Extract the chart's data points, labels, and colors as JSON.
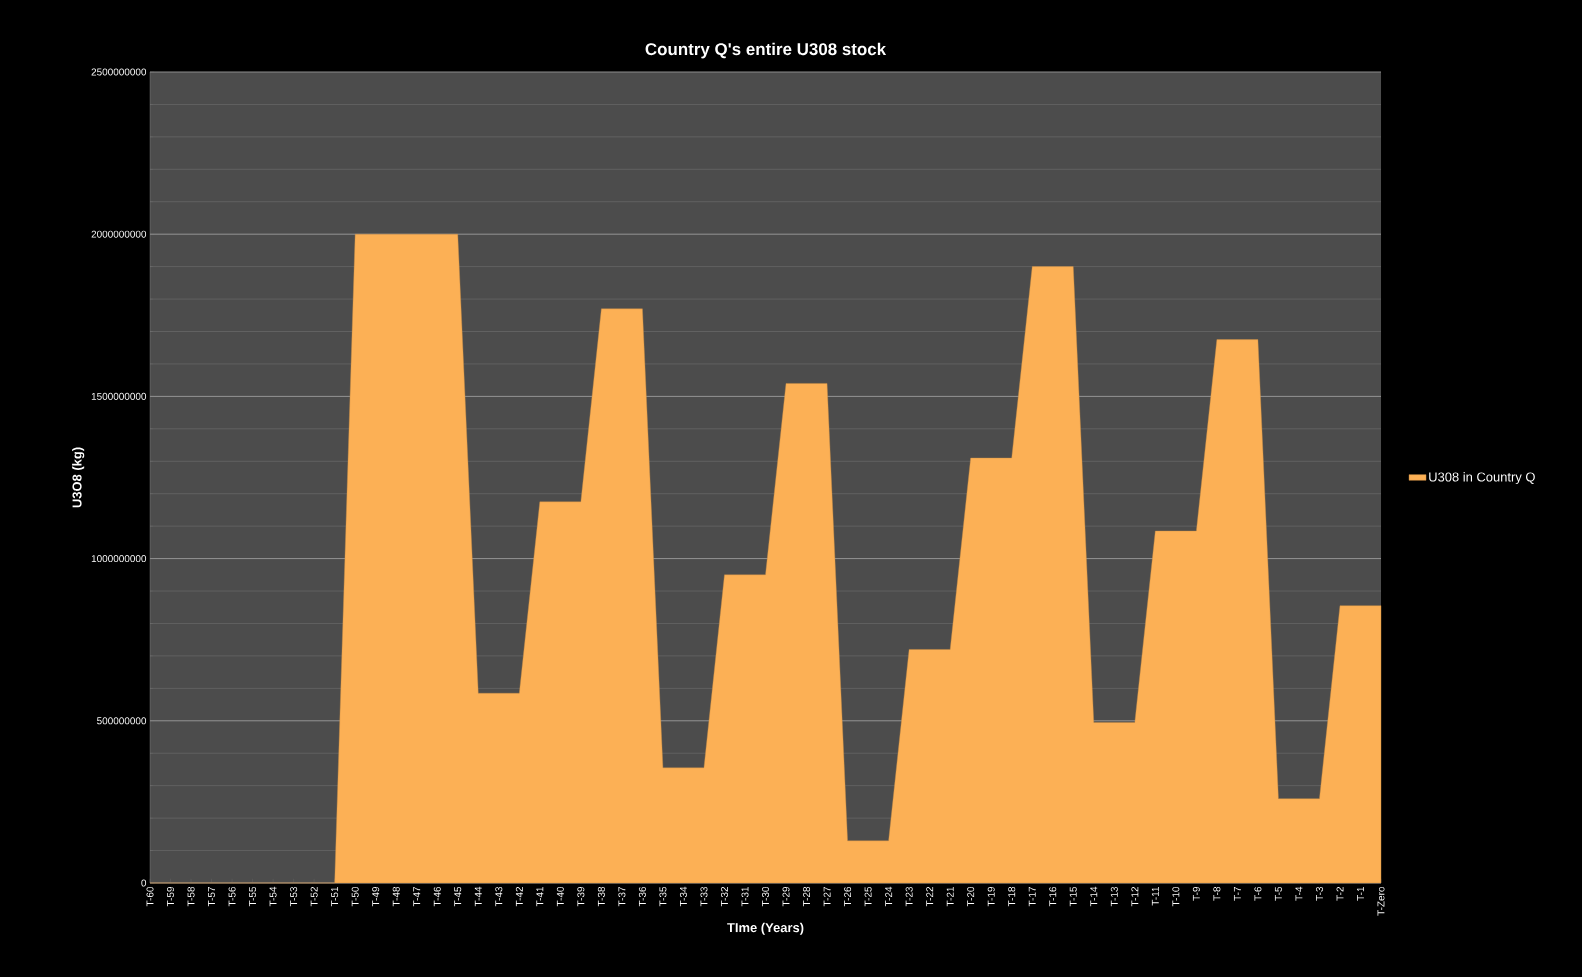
{
  "chart_data": {
    "type": "area",
    "title": "Country Q's entire U308 stock",
    "xlabel": "TIme (Years)",
    "ylabel": "U3O8  (kg)",
    "categories": [
      "T-60",
      "T-59",
      "T-58",
      "T-57",
      "T-56",
      "T-55",
      "T-54",
      "T-53",
      "T-52",
      "T-51",
      "T-50",
      "T-49",
      "T-48",
      "T-47",
      "T-46",
      "T-45",
      "T-44",
      "T-43",
      "T-42",
      "T-41",
      "T-40",
      "T-39",
      "T-38",
      "T-37",
      "T-36",
      "T-35",
      "T-34",
      "T-33",
      "T-32",
      "T-31",
      "T-30",
      "T-29",
      "T-28",
      "T-27",
      "T-26",
      "T-25",
      "T-24",
      "T-23",
      "T-22",
      "T-21",
      "T-20",
      "T-19",
      "T-18",
      "T-17",
      "T-16",
      "T-15",
      "T-14",
      "T-13",
      "T-12",
      "T-11",
      "T-10",
      "T-9",
      "T-8",
      "T-7",
      "T-6",
      "T-5",
      "T-4",
      "T-3",
      "T-2",
      "T-1",
      "T-Zero"
    ],
    "series": [
      {
        "name": "U308 in Country Q",
        "color": "#fcb055",
        "values": [
          0,
          0,
          0,
          0,
          0,
          0,
          0,
          0,
          0,
          0,
          2000000000,
          2000000000,
          2000000000,
          2000000000,
          2000000000,
          2000000000,
          585000000,
          585000000,
          585000000,
          1175000000,
          1175000000,
          1175000000,
          1770000000,
          1770000000,
          1770000000,
          355000000,
          355000000,
          355000000,
          950000000,
          950000000,
          950000000,
          1540000000,
          1540000000,
          1540000000,
          130000000,
          130000000,
          130000000,
          720000000,
          720000000,
          720000000,
          1310000000,
          1310000000,
          1310000000,
          1900000000,
          1900000000,
          1900000000,
          495000000,
          495000000,
          495000000,
          1085000000,
          1085000000,
          1085000000,
          1675000000,
          1675000000,
          1675000000,
          260000000,
          260000000,
          260000000,
          855000000,
          855000000,
          855000000
        ]
      }
    ],
    "ylim": [
      0,
      2500000000
    ],
    "yticks": [
      0,
      500000000,
      1000000000,
      1500000000,
      2000000000,
      2500000000
    ],
    "grid": "y",
    "legend": "right"
  }
}
